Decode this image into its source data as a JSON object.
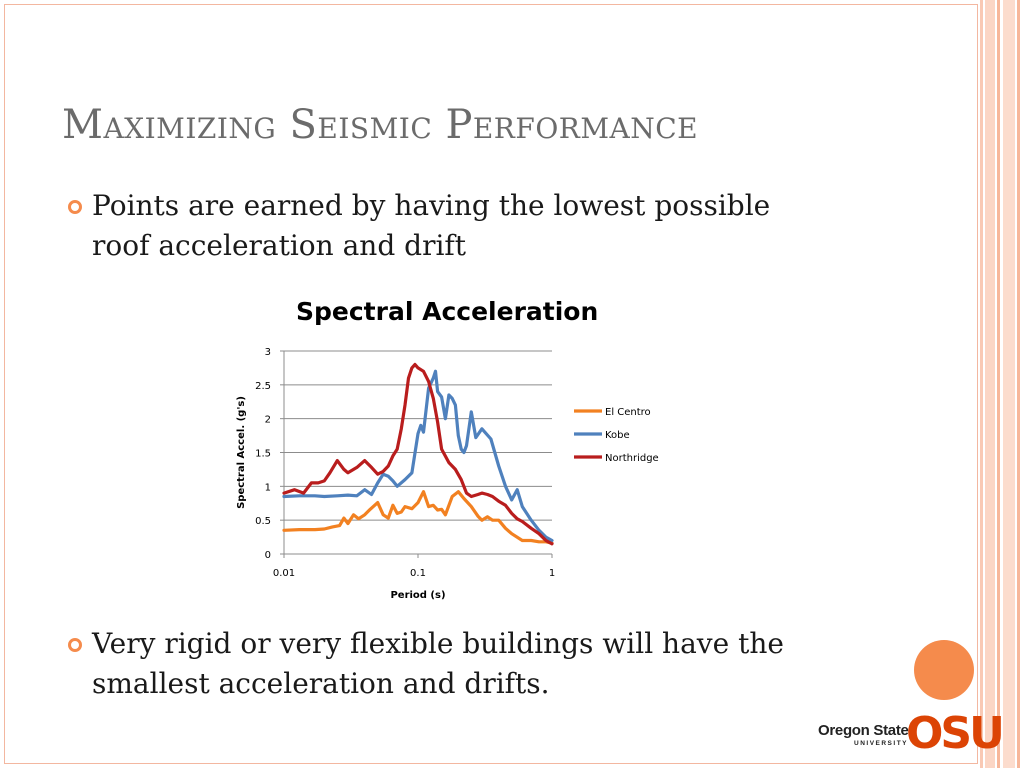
{
  "slide": {
    "title": "Maximizing Seismic Performance",
    "bullets": [
      {
        "line1": "Points are earned by having the lowest possible",
        "line2": "roof acceleration and drift"
      },
      {
        "line1": "Very rigid or very flexible buildings will have the",
        "line2": "smallest acceleration and drifts."
      }
    ]
  },
  "logo": {
    "name": "Oregon State",
    "sub": "UNIVERSITY",
    "mark": "OSU"
  },
  "colors": {
    "accent": "#f58b4c",
    "border": "#f3b7a0",
    "osu_orange": "#dc4405"
  },
  "chart_data": {
    "type": "line",
    "title": "Spectral Acceleration",
    "xlabel": "Period (s)",
    "ylabel": "Spectral Accel. (g's)",
    "xscale": "log",
    "xlim": [
      0.01,
      1
    ],
    "ylim": [
      0,
      3
    ],
    "xticks": [
      "0.01",
      "0.1",
      "1"
    ],
    "yticks": [
      "0",
      "0.5",
      "1",
      "1.5",
      "2",
      "2.5",
      "3"
    ],
    "grid": true,
    "legend_position": "right",
    "series": [
      {
        "name": "El Centro",
        "color": "#f28121",
        "x": [
          0.01,
          0.013,
          0.017,
          0.02,
          0.023,
          0.026,
          0.028,
          0.03,
          0.033,
          0.036,
          0.04,
          0.044,
          0.05,
          0.055,
          0.06,
          0.065,
          0.07,
          0.075,
          0.08,
          0.09,
          0.1,
          0.11,
          0.12,
          0.13,
          0.14,
          0.15,
          0.16,
          0.18,
          0.2,
          0.22,
          0.25,
          0.28,
          0.3,
          0.33,
          0.36,
          0.4,
          0.45,
          0.5,
          0.6,
          0.7,
          0.8,
          0.9,
          1.0
        ],
        "y": [
          0.35,
          0.36,
          0.36,
          0.37,
          0.4,
          0.42,
          0.53,
          0.45,
          0.58,
          0.52,
          0.58,
          0.66,
          0.76,
          0.58,
          0.53,
          0.72,
          0.6,
          0.62,
          0.7,
          0.67,
          0.76,
          0.92,
          0.7,
          0.72,
          0.65,
          0.66,
          0.58,
          0.85,
          0.92,
          0.82,
          0.7,
          0.56,
          0.5,
          0.55,
          0.5,
          0.5,
          0.38,
          0.3,
          0.2,
          0.2,
          0.18,
          0.18,
          0.16
        ]
      },
      {
        "name": "Kobe",
        "color": "#4f81bd",
        "x": [
          0.01,
          0.013,
          0.017,
          0.02,
          0.025,
          0.03,
          0.035,
          0.04,
          0.045,
          0.05,
          0.055,
          0.06,
          0.065,
          0.07,
          0.08,
          0.09,
          0.1,
          0.105,
          0.11,
          0.12,
          0.13,
          0.135,
          0.14,
          0.15,
          0.16,
          0.17,
          0.18,
          0.19,
          0.2,
          0.21,
          0.22,
          0.23,
          0.25,
          0.27,
          0.3,
          0.35,
          0.4,
          0.45,
          0.5,
          0.55,
          0.6,
          0.7,
          0.8,
          0.9,
          1.0
        ],
        "y": [
          0.85,
          0.86,
          0.86,
          0.85,
          0.86,
          0.87,
          0.86,
          0.95,
          0.88,
          1.05,
          1.18,
          1.15,
          1.08,
          1.0,
          1.1,
          1.2,
          1.78,
          1.9,
          1.8,
          2.45,
          2.6,
          2.7,
          2.4,
          2.32,
          2.0,
          2.35,
          2.3,
          2.2,
          1.75,
          1.55,
          1.5,
          1.6,
          2.1,
          1.72,
          1.85,
          1.7,
          1.3,
          1.0,
          0.8,
          0.95,
          0.7,
          0.5,
          0.35,
          0.25,
          0.2
        ]
      },
      {
        "name": "Northridge",
        "color": "#b91d1d",
        "x": [
          0.01,
          0.012,
          0.014,
          0.016,
          0.018,
          0.02,
          0.022,
          0.025,
          0.028,
          0.03,
          0.035,
          0.04,
          0.045,
          0.05,
          0.055,
          0.06,
          0.065,
          0.07,
          0.075,
          0.08,
          0.085,
          0.09,
          0.095,
          0.1,
          0.11,
          0.12,
          0.13,
          0.14,
          0.15,
          0.17,
          0.19,
          0.21,
          0.23,
          0.25,
          0.28,
          0.3,
          0.33,
          0.36,
          0.4,
          0.45,
          0.5,
          0.55,
          0.6,
          0.7,
          0.8,
          0.9,
          1.0
        ],
        "y": [
          0.9,
          0.95,
          0.9,
          1.05,
          1.05,
          1.08,
          1.2,
          1.38,
          1.25,
          1.2,
          1.28,
          1.38,
          1.28,
          1.18,
          1.22,
          1.3,
          1.45,
          1.55,
          1.85,
          2.2,
          2.6,
          2.75,
          2.8,
          2.75,
          2.7,
          2.55,
          2.3,
          1.95,
          1.55,
          1.35,
          1.25,
          1.1,
          0.9,
          0.85,
          0.88,
          0.9,
          0.88,
          0.85,
          0.78,
          0.72,
          0.6,
          0.52,
          0.48,
          0.38,
          0.3,
          0.2,
          0.15
        ]
      }
    ]
  }
}
